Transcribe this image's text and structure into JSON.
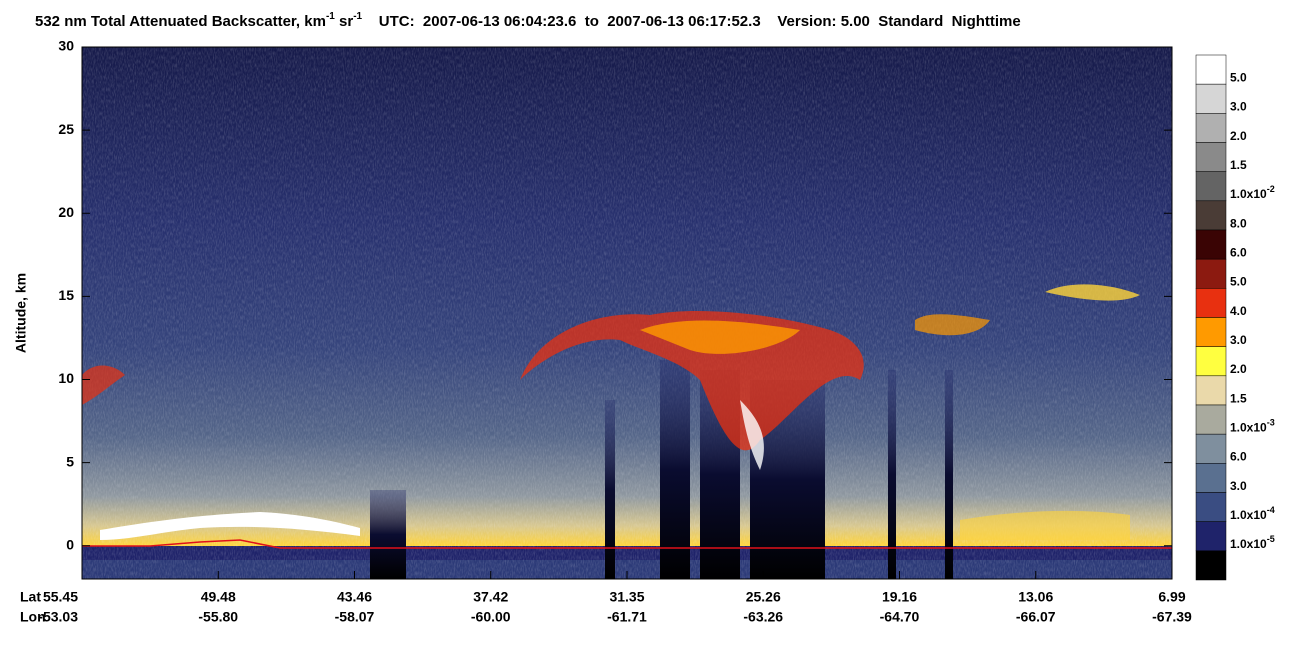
{
  "chart_data": {
    "type": "curtain",
    "title": [
      {
        "text": "532 nm Total Attenuated Backscatter, km"
      },
      {
        "sup": "-1"
      },
      {
        "text": " sr"
      },
      {
        "sup": "-1"
      },
      {
        "text": "    UTC:  2007-06-13 06:04:23.6  to  2007-06-13 06:17:52.3    Version: 5.00  Standard  Nighttime"
      }
    ],
    "ylabel": "Altitude, km",
    "ylim": [
      -2,
      30
    ],
    "yticks": [
      0,
      5,
      10,
      15,
      20,
      25,
      30
    ],
    "x_rows": [
      {
        "name": "Lat",
        "labels": [
          "55.45",
          "49.48",
          "43.46",
          "37.42",
          "31.35",
          "25.26",
          "19.16",
          "13.06",
          "6.99"
        ]
      },
      {
        "name": "Lon",
        "labels": [
          "-53.03",
          "-55.80",
          "-58.07",
          "-60.00",
          "-61.71",
          "-63.26",
          "-64.70",
          "-66.07",
          "-67.39"
        ]
      }
    ],
    "colorbar": {
      "colors": [
        "#ffffff",
        "#d6d6d6",
        "#b0b0b0",
        "#8a8a8a",
        "#646464",
        "#4a3c36",
        "#3a0404",
        "#8c1a10",
        "#e83010",
        "#ff9a00",
        "#ffff40",
        "#ead9aa",
        "#a9aa9e",
        "#7f8f9e",
        "#5a7090",
        "#3a4d82",
        "#1f236a",
        "#000000"
      ],
      "labels": [
        "5.0",
        "3.0",
        "2.0",
        "1.5",
        {
          "text": "1.0x10",
          "sup": "-2"
        },
        "8.0",
        "6.0",
        "5.0",
        "4.0",
        "3.0",
        "2.0",
        "1.5",
        {
          "text": "1.0x10",
          "sup": "-3"
        },
        "6.0",
        "3.0",
        {
          "text": "1.0x10",
          "sup": "-4"
        },
        {
          "text": "1.0x10",
          "sup": "-5"
        }
      ]
    }
  }
}
